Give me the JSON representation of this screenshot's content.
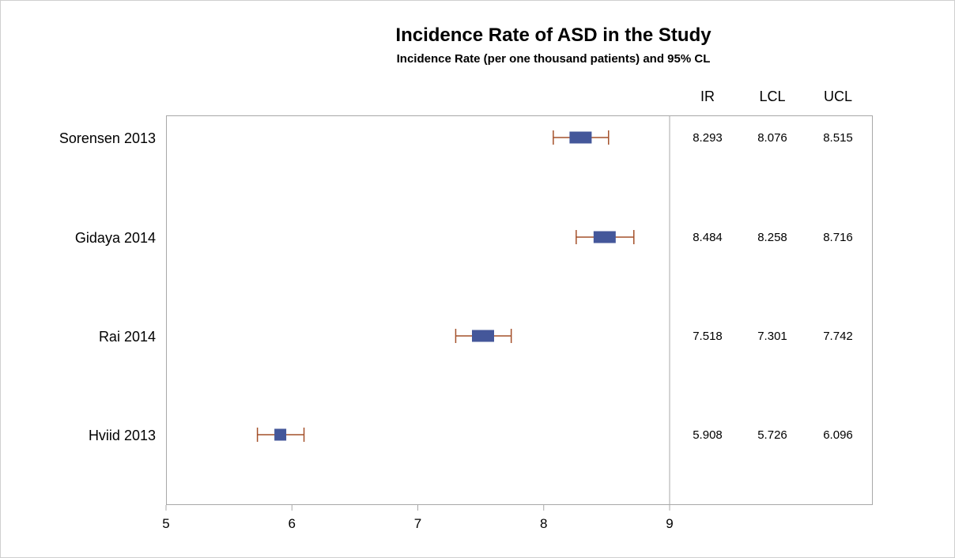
{
  "chart_data": {
    "type": "forest",
    "title": "Incidence Rate of ASD in the Study",
    "subtitle": "Incidence Rate (per one thousand patients) and 95% CL",
    "xlim": [
      5,
      9
    ],
    "x_ticks": [
      "5",
      "6",
      "7",
      "8",
      "9"
    ],
    "grid": false,
    "columns": [
      "IR",
      "LCL",
      "UCL"
    ],
    "studies": [
      {
        "label": "Sorensen  2013",
        "ir": 8.293,
        "lcl": 8.076,
        "ucl": 8.515,
        "ir_text": "8.293",
        "lcl_text": "8.076",
        "ucl_text": "8.515"
      },
      {
        "label": "Gidaya 2014",
        "ir": 8.484,
        "lcl": 8.258,
        "ucl": 8.716,
        "ir_text": "8.484",
        "lcl_text": "8.258",
        "ucl_text": "8.716"
      },
      {
        "label": "Rai 2014",
        "ir": 7.518,
        "lcl": 7.301,
        "ucl": 7.742,
        "ir_text": "7.518",
        "lcl_text": "7.301",
        "ucl_text": "7.742"
      },
      {
        "label": "Hviid 2013",
        "ir": 5.908,
        "lcl": 5.726,
        "ucl": 6.096,
        "ir_text": "5.908",
        "lcl_text": "5.726",
        "ucl_text": "6.096"
      }
    ],
    "colors": {
      "marker": "#44579a",
      "whisker": "#a4502a",
      "frame": "#a8a8a8",
      "outer_border": "#cfcfcf"
    }
  }
}
